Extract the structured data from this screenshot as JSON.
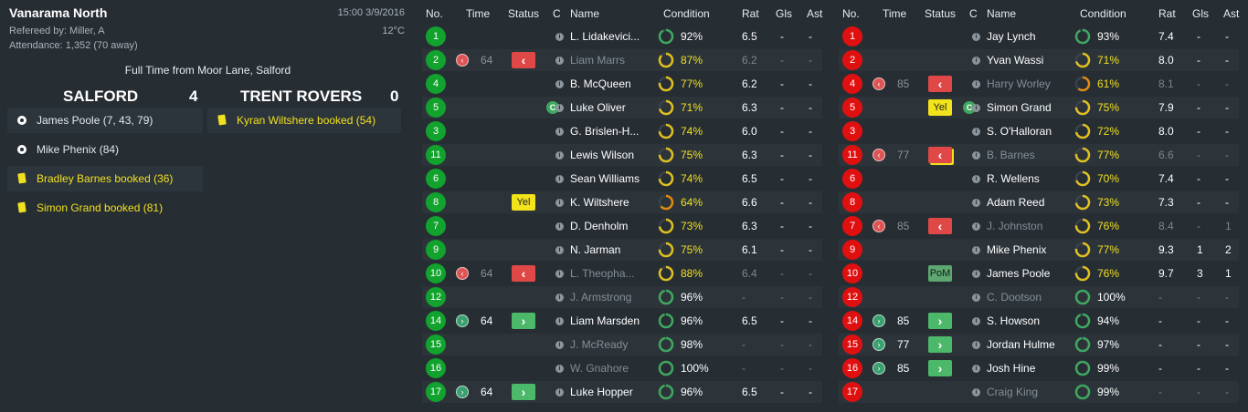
{
  "match": {
    "competition": "Vanarama North",
    "datetime": "15:00 3/9/2016",
    "referee": "Refereed by: Miller, A",
    "temperature": "12°C",
    "attendance": "Attendance: 1,352 (70 away)",
    "full_time": "Full Time from Moor Lane, Salford",
    "home_team": "SALFORD",
    "home_score": "4",
    "away_team": "TRENT ROVERS",
    "away_score": "0"
  },
  "home_events": [
    {
      "type": "goal",
      "text": "James Poole (7, 43, 79)"
    },
    {
      "type": "goal",
      "text": "Mike Phenix (84)"
    },
    {
      "type": "booking",
      "text": "Bradley Barnes booked (36)"
    },
    {
      "type": "booking",
      "text": "Simon Grand booked (81)"
    }
  ],
  "away_events": [
    {
      "type": "booking",
      "text": "Kyran Wiltshere booked (54)"
    }
  ],
  "headers": {
    "no": "No.",
    "time": "Time",
    "status": "Status",
    "c": "C",
    "name": "Name",
    "condition": "Condition",
    "rat": "Rat",
    "gls": "Gls",
    "ast": "Ast"
  },
  "colors": {
    "home_number": "#12a22e",
    "away_number": "#e01010",
    "ring_green": "#3fa860",
    "ring_yellow": "#e0c020",
    "ring_orange": "#e08a10"
  },
  "home_players": [
    {
      "no": "1",
      "time": "",
      "sub": "",
      "status": "",
      "cap": false,
      "name": "L. Lidakevici...",
      "cond": "92%",
      "ring": "green",
      "rat": "6.5",
      "gls": "-",
      "ast": "-",
      "subbed": false
    },
    {
      "no": "2",
      "time": "64",
      "sub": "off",
      "status": "off",
      "cap": false,
      "name": "Liam Marrs",
      "cond": "87%",
      "ring": "yellow",
      "rat": "6.2",
      "gls": "-",
      "ast": "-",
      "subbed": true
    },
    {
      "no": "4",
      "time": "",
      "sub": "",
      "status": "",
      "cap": false,
      "name": "B. McQueen",
      "cond": "77%",
      "ring": "yellow",
      "rat": "6.2",
      "gls": "-",
      "ast": "-",
      "subbed": false
    },
    {
      "no": "5",
      "time": "",
      "sub": "",
      "status": "",
      "cap": true,
      "name": "Luke Oliver",
      "cond": "71%",
      "ring": "yellow",
      "rat": "6.3",
      "gls": "-",
      "ast": "-",
      "subbed": false
    },
    {
      "no": "3",
      "time": "",
      "sub": "",
      "status": "",
      "cap": false,
      "name": "G. Brislen-H...",
      "cond": "74%",
      "ring": "yellow",
      "rat": "6.0",
      "gls": "-",
      "ast": "-",
      "subbed": false
    },
    {
      "no": "11",
      "time": "",
      "sub": "",
      "status": "",
      "cap": false,
      "name": "Lewis Wilson",
      "cond": "75%",
      "ring": "yellow",
      "rat": "6.3",
      "gls": "-",
      "ast": "-",
      "subbed": false
    },
    {
      "no": "6",
      "time": "",
      "sub": "",
      "status": "",
      "cap": false,
      "name": "Sean Williams",
      "cond": "74%",
      "ring": "yellow",
      "rat": "6.5",
      "gls": "-",
      "ast": "-",
      "subbed": false
    },
    {
      "no": "8",
      "time": "",
      "sub": "",
      "status": "Yel",
      "cap": false,
      "name": "K. Wiltshere",
      "cond": "64%",
      "ring": "orange",
      "rat": "6.6",
      "gls": "-",
      "ast": "-",
      "subbed": false
    },
    {
      "no": "7",
      "time": "",
      "sub": "",
      "status": "",
      "cap": false,
      "name": "D. Denholm",
      "cond": "73%",
      "ring": "yellow",
      "rat": "6.3",
      "gls": "-",
      "ast": "-",
      "subbed": false
    },
    {
      "no": "9",
      "time": "",
      "sub": "",
      "status": "",
      "cap": false,
      "name": "N. Jarman",
      "cond": "75%",
      "ring": "yellow",
      "rat": "6.1",
      "gls": "-",
      "ast": "-",
      "subbed": false
    },
    {
      "no": "10",
      "time": "64",
      "sub": "off",
      "status": "off",
      "cap": false,
      "name": "L. Theopha...",
      "cond": "88%",
      "ring": "yellow",
      "rat": "6.4",
      "gls": "-",
      "ast": "-",
      "subbed": true
    },
    {
      "no": "12",
      "time": "",
      "sub": "",
      "status": "",
      "cap": false,
      "name": "J. Armstrong",
      "cond": "96%",
      "ring": "green",
      "rat": "-",
      "gls": "-",
      "ast": "-",
      "subbed": true
    },
    {
      "no": "14",
      "time": "64",
      "sub": "on",
      "status": "on",
      "cap": false,
      "name": "Liam Marsden",
      "cond": "96%",
      "ring": "green",
      "rat": "6.5",
      "gls": "-",
      "ast": "-",
      "subbed": false
    },
    {
      "no": "15",
      "time": "",
      "sub": "",
      "status": "",
      "cap": false,
      "name": "J. McReady",
      "cond": "98%",
      "ring": "green",
      "rat": "-",
      "gls": "-",
      "ast": "-",
      "subbed": true
    },
    {
      "no": "16",
      "time": "",
      "sub": "",
      "status": "",
      "cap": false,
      "name": "W. Gnahore",
      "cond": "100%",
      "ring": "green",
      "rat": "-",
      "gls": "-",
      "ast": "-",
      "subbed": true
    },
    {
      "no": "17",
      "time": "64",
      "sub": "on",
      "status": "on",
      "cap": false,
      "name": "Luke Hopper",
      "cond": "96%",
      "ring": "green",
      "rat": "6.5",
      "gls": "-",
      "ast": "-",
      "subbed": false
    }
  ],
  "away_players": [
    {
      "no": "1",
      "time": "",
      "sub": "",
      "status": "",
      "cap": false,
      "name": "Jay Lynch",
      "cond": "93%",
      "ring": "green",
      "rat": "7.4",
      "gls": "-",
      "ast": "-",
      "subbed": false
    },
    {
      "no": "2",
      "time": "",
      "sub": "",
      "status": "",
      "cap": false,
      "name": "Yvan Wassi",
      "cond": "71%",
      "ring": "yellow",
      "rat": "8.0",
      "gls": "-",
      "ast": "-",
      "subbed": false
    },
    {
      "no": "4",
      "time": "85",
      "sub": "off",
      "status": "off",
      "cap": false,
      "name": "Harry Worley",
      "cond": "61%",
      "ring": "orange",
      "rat": "8.1",
      "gls": "-",
      "ast": "-",
      "subbed": true
    },
    {
      "no": "5",
      "time": "",
      "sub": "",
      "status": "Yel",
      "cap": true,
      "name": "Simon Grand",
      "cond": "75%",
      "ring": "yellow",
      "rat": "7.9",
      "gls": "-",
      "ast": "-",
      "subbed": false
    },
    {
      "no": "3",
      "time": "",
      "sub": "",
      "status": "",
      "cap": false,
      "name": "S. O'Halloran",
      "cond": "72%",
      "ring": "yellow",
      "rat": "8.0",
      "gls": "-",
      "ast": "-",
      "subbed": false
    },
    {
      "no": "11",
      "time": "77",
      "sub": "off",
      "status": "offyc",
      "cap": false,
      "name": "B. Barnes",
      "cond": "77%",
      "ring": "yellow",
      "rat": "6.6",
      "gls": "-",
      "ast": "-",
      "subbed": true
    },
    {
      "no": "6",
      "time": "",
      "sub": "",
      "status": "",
      "cap": false,
      "name": "R. Wellens",
      "cond": "70%",
      "ring": "yellow",
      "rat": "7.4",
      "gls": "-",
      "ast": "-",
      "subbed": false
    },
    {
      "no": "8",
      "time": "",
      "sub": "",
      "status": "",
      "cap": false,
      "name": "Adam Reed",
      "cond": "73%",
      "ring": "yellow",
      "rat": "7.3",
      "gls": "-",
      "ast": "-",
      "subbed": false
    },
    {
      "no": "7",
      "time": "85",
      "sub": "off",
      "status": "off",
      "cap": false,
      "name": "J. Johnston",
      "cond": "76%",
      "ring": "yellow",
      "rat": "8.4",
      "gls": "-",
      "ast": "1",
      "subbed": true
    },
    {
      "no": "9",
      "time": "",
      "sub": "",
      "status": "",
      "cap": false,
      "name": "Mike Phenix",
      "cond": "77%",
      "ring": "yellow",
      "rat": "9.3",
      "gls": "1",
      "ast": "2",
      "subbed": false
    },
    {
      "no": "10",
      "time": "",
      "sub": "",
      "status": "PoM",
      "cap": false,
      "name": "James Poole",
      "cond": "76%",
      "ring": "yellow",
      "rat": "9.7",
      "gls": "3",
      "ast": "1",
      "subbed": false
    },
    {
      "no": "12",
      "time": "",
      "sub": "",
      "status": "",
      "cap": false,
      "name": "C. Dootson",
      "cond": "100%",
      "ring": "green",
      "rat": "-",
      "gls": "-",
      "ast": "-",
      "subbed": true
    },
    {
      "no": "14",
      "time": "85",
      "sub": "on",
      "status": "on",
      "cap": false,
      "name": "S. Howson",
      "cond": "94%",
      "ring": "green",
      "rat": "-",
      "gls": "-",
      "ast": "-",
      "subbed": false
    },
    {
      "no": "15",
      "time": "77",
      "sub": "on",
      "status": "on",
      "cap": false,
      "name": "Jordan Hulme",
      "cond": "97%",
      "ring": "green",
      "rat": "-",
      "gls": "-",
      "ast": "-",
      "subbed": false
    },
    {
      "no": "16",
      "time": "85",
      "sub": "on",
      "status": "on",
      "cap": false,
      "name": "Josh Hine",
      "cond": "99%",
      "ring": "green",
      "rat": "-",
      "gls": "-",
      "ast": "-",
      "subbed": false
    },
    {
      "no": "17",
      "time": "",
      "sub": "",
      "status": "",
      "cap": false,
      "name": "Craig King",
      "cond": "99%",
      "ring": "green",
      "rat": "-",
      "gls": "-",
      "ast": "-",
      "subbed": true
    }
  ]
}
